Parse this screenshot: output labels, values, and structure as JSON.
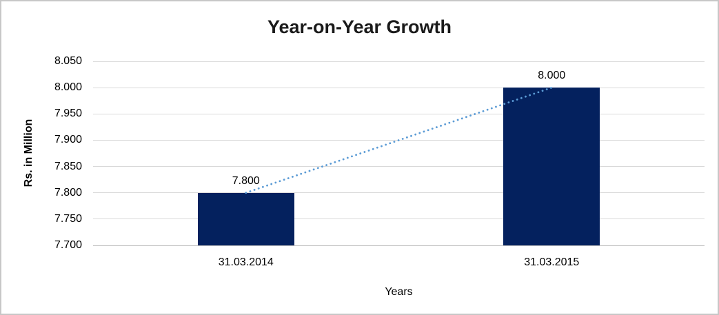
{
  "chart": {
    "title": "Year-on-Year Growth",
    "y_axis_title": "Rs. in Million",
    "x_axis_title": "Years",
    "colors": {
      "bar": "#04215e",
      "trendline": "#5b9bd5",
      "gridline": "#d9d9d9",
      "axis_line": "#bfbfbf",
      "text": "#000000",
      "frame_border": "#c7c7c7"
    }
  },
  "chart_data": {
    "type": "bar",
    "title": "Year-on-Year Growth",
    "xlabel": "Years",
    "ylabel": "Rs. in Million",
    "categories": [
      "31.03.2014",
      "31.03.2015"
    ],
    "values": [
      7.8,
      8.0
    ],
    "data_labels": [
      "7.800",
      "8.000"
    ],
    "ylim": [
      7.7,
      8.05
    ],
    "ytick_step": 0.05,
    "ytick_labels": [
      "7.700",
      "7.750",
      "7.800",
      "7.850",
      "7.900",
      "7.950",
      "8.000",
      "8.050"
    ],
    "grid": true,
    "legend": false,
    "trendline": {
      "style": "dotted",
      "from_value": 7.8,
      "to_value": 8.0
    }
  }
}
